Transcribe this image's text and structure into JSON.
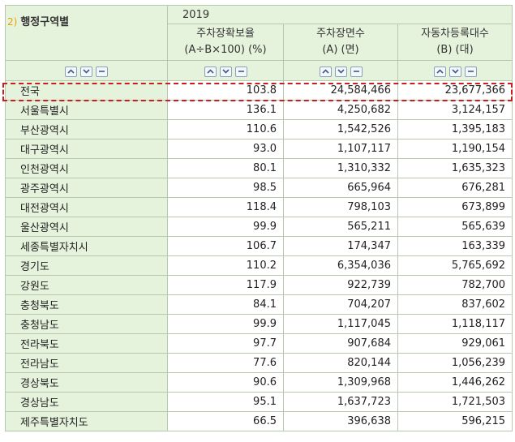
{
  "header": {
    "row_label_num": "2)",
    "row_label": "행정구역별",
    "year": "2019",
    "columns": [
      {
        "line1": "주차장확보율",
        "line2": "(A÷B×100) (%)"
      },
      {
        "line1": "주차장면수",
        "line2": "(A) (면)"
      },
      {
        "line1": "자동차등록대수",
        "line2": "(B) (대)"
      }
    ]
  },
  "rows": [
    {
      "name": "전국",
      "ratio": "103.8",
      "spaces": "24,584,466",
      "cars": "23,677,366"
    },
    {
      "name": "서울특별시",
      "ratio": "136.1",
      "spaces": "4,250,682",
      "cars": "3,124,157"
    },
    {
      "name": "부산광역시",
      "ratio": "110.6",
      "spaces": "1,542,526",
      "cars": "1,395,183"
    },
    {
      "name": "대구광역시",
      "ratio": "93.0",
      "spaces": "1,107,117",
      "cars": "1,190,154"
    },
    {
      "name": "인천광역시",
      "ratio": "80.1",
      "spaces": "1,310,332",
      "cars": "1,635,323"
    },
    {
      "name": "광주광역시",
      "ratio": "98.5",
      "spaces": "665,964",
      "cars": "676,281"
    },
    {
      "name": "대전광역시",
      "ratio": "118.4",
      "spaces": "798,103",
      "cars": "673,899"
    },
    {
      "name": "울산광역시",
      "ratio": "99.9",
      "spaces": "565,211",
      "cars": "565,639"
    },
    {
      "name": "세종특별자치시",
      "ratio": "106.7",
      "spaces": "174,347",
      "cars": "163,339"
    },
    {
      "name": "경기도",
      "ratio": "110.2",
      "spaces": "6,354,036",
      "cars": "5,765,692"
    },
    {
      "name": "강원도",
      "ratio": "117.9",
      "spaces": "922,739",
      "cars": "782,700"
    },
    {
      "name": "충청북도",
      "ratio": "84.1",
      "spaces": "704,207",
      "cars": "837,602"
    },
    {
      "name": "충청남도",
      "ratio": "99.9",
      "spaces": "1,117,045",
      "cars": "1,118,117"
    },
    {
      "name": "전라북도",
      "ratio": "97.7",
      "spaces": "907,684",
      "cars": "929,061"
    },
    {
      "name": "전라남도",
      "ratio": "77.6",
      "spaces": "820,144",
      "cars": "1,056,239"
    },
    {
      "name": "경상북도",
      "ratio": "90.6",
      "spaces": "1,309,968",
      "cars": "1,446,262"
    },
    {
      "name": "경상남도",
      "ratio": "95.1",
      "spaces": "1,637,723",
      "cars": "1,721,503"
    },
    {
      "name": "제주특별자치도",
      "ratio": "66.5",
      "spaces": "396,638",
      "cars": "596,215"
    }
  ]
}
